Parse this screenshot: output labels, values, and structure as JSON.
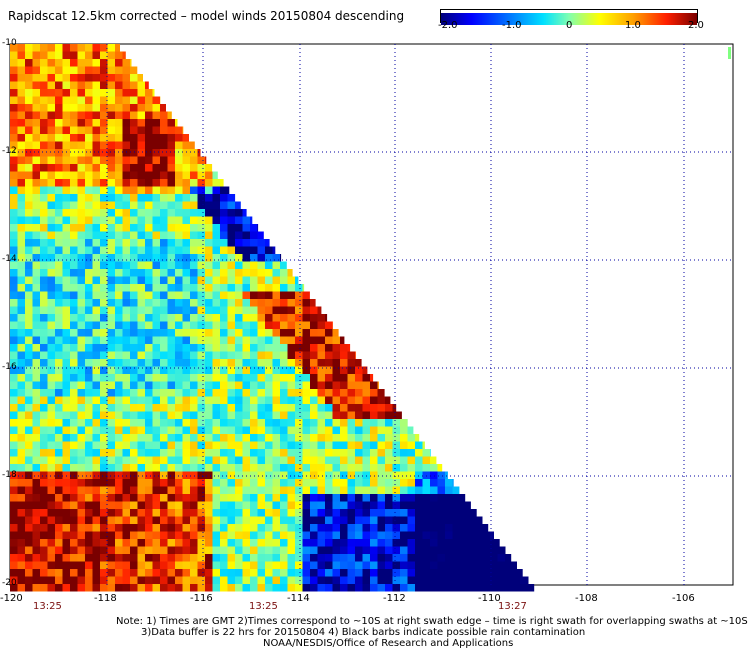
{
  "title": "Rapidscat 12.5km corrected – model winds 20150804 descending",
  "colorbar": {
    "ticks": [
      "-2.0",
      "-1.0",
      "0",
      "1.0",
      "2.0"
    ],
    "stops": [
      "#00007a",
      "#0000ff",
      "#0080ff",
      "#00e0ff",
      "#80ffb0",
      "#ffff00",
      "#ffa000",
      "#ff2000",
      "#7a0000"
    ]
  },
  "axes": {
    "y_labels": [
      "-10",
      "-12",
      "-14",
      "-16",
      "-18",
      "-20"
    ],
    "x_labels": [
      "-120",
      "-118",
      "-116",
      "-114",
      "-112",
      "-110",
      "-108",
      "-106"
    ]
  },
  "times": [
    "13:25",
    "13:25",
    "13:27"
  ],
  "notes": {
    "line1": "Note: 1) Times are GMT 2)Times correspond to ~10S at right swath edge – time is right swath for overlapping swaths at ~10S",
    "line2": "3)Data buffer is 22 hrs for 20150804 4) Black barbs indicate possible rain contamination",
    "line3": "NOAA/NESDIS/Office of Research and Applications"
  },
  "colors": {
    "dark_red": "#7a1010",
    "grid": "#0000a0"
  }
}
